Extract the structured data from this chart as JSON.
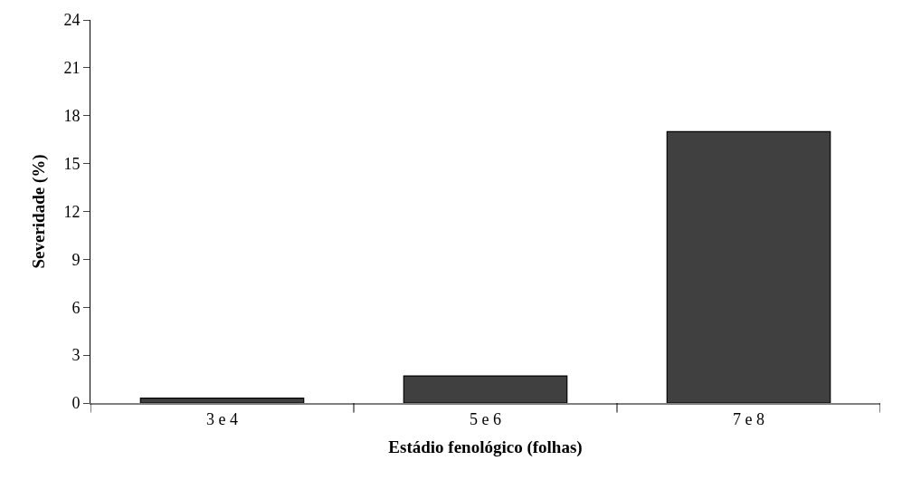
{
  "chart_data": {
    "type": "bar",
    "xlabel": "Estádio fenológico (folhas)",
    "ylabel": "Severidade (%)",
    "categories": [
      "3 e 4",
      "5 e 6",
      "7 e 8"
    ],
    "values": [
      0.3,
      1.7,
      17
    ],
    "color": "#404040",
    "ylim": [
      0,
      24
    ],
    "yticks": [
      0,
      3,
      6,
      9,
      12,
      15,
      18,
      21,
      24
    ]
  }
}
